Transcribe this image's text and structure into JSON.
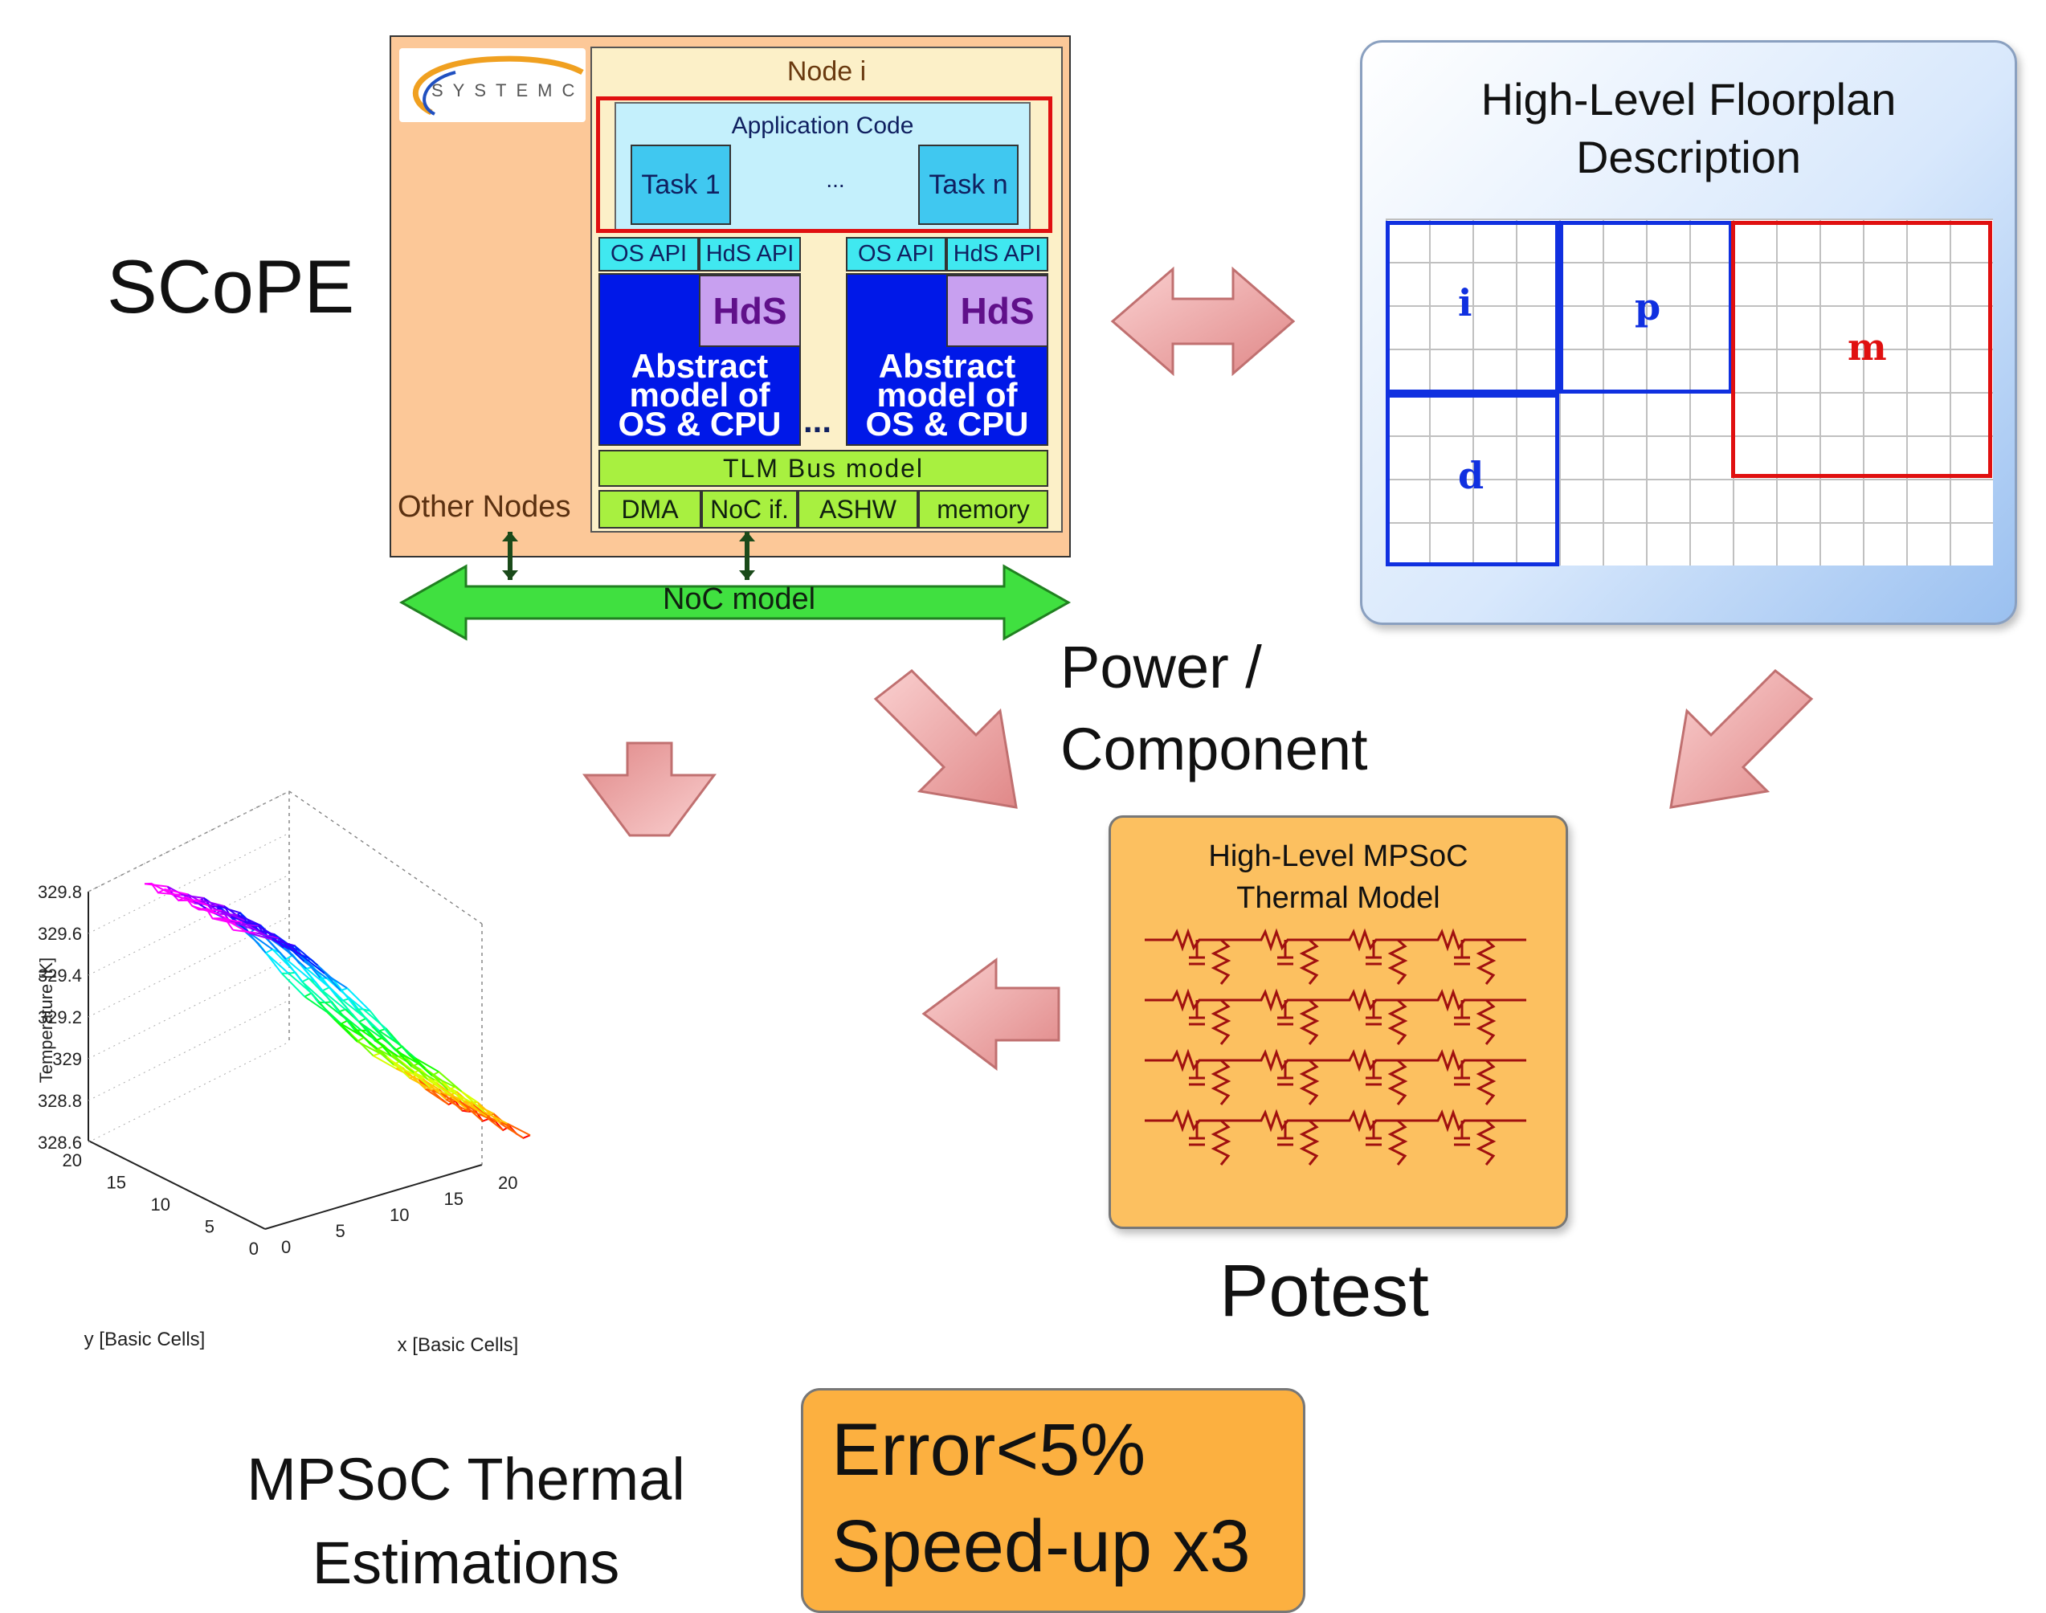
{
  "scope": {
    "title": "SCoPE",
    "logo_text": "SYSTEMC",
    "node_title": "Node i",
    "app_code": "Application Code",
    "task1": "Task 1",
    "ellipsis": "...",
    "taskn": "Task n",
    "os_api": "OS API",
    "hds_api": "HdS API",
    "hds": "HdS",
    "cpu_line1": "Abstract",
    "cpu_line2": "model of",
    "cpu_line3": "OS & CPU",
    "cpu_dots": "...",
    "tlm_bus": "TLM Bus model",
    "dma": "DMA",
    "noc_if": "NoC if.",
    "ashw": "ASHW",
    "memory": "memory",
    "other_nodes": "Other Nodes",
    "noc_model": "NoC model"
  },
  "floorplan": {
    "title_line1": "High-Level Floorplan",
    "title_line2": "Description",
    "blocks": [
      "i",
      "p",
      "m",
      "d"
    ]
  },
  "power_label_line1": "Power /",
  "power_label_line2": "Component",
  "potest": {
    "title_line1": "High-Level MPSoC",
    "title_line2": "Thermal Model",
    "name": "Potest"
  },
  "thermal": {
    "caption_line1": "MPSoC Thermal",
    "caption_line2": "Estimations",
    "zlabel": "Temperature [K]",
    "ylabel": "y [Basic Cells]",
    "xlabel": "x [Basic Cells]",
    "zticks": [
      "329.8",
      "329.6",
      "329.4",
      "329.2",
      "329",
      "328.8",
      "328.6"
    ],
    "yticks": [
      "20",
      "15",
      "10",
      "5",
      "0"
    ],
    "xticks": [
      "0",
      "5",
      "10",
      "15",
      "20"
    ]
  },
  "result": {
    "line1": "Error<5%",
    "line2": "Speed-up x3"
  },
  "colors": {
    "arrow_fill": "#f0b0b0",
    "noc_green": "#40e040",
    "red_highlight": "#e01010",
    "blue_block": "#1030e0"
  }
}
